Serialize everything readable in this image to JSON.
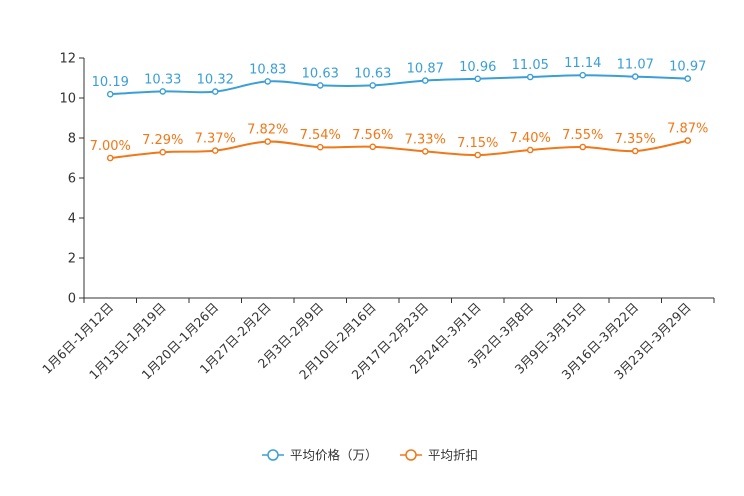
{
  "chart_data": {
    "type": "line",
    "categories": [
      "1月6日-1月12日",
      "1月13日-1月19日",
      "1月20日-1月26日",
      "1月27日-2月2日",
      "2月3日-2月9日",
      "2月10日-2月16日",
      "2月17日-2月23日",
      "2月24日-3月1日",
      "3月2日-3月8日",
      "3月9日-3月15日",
      "3月16日-3月22日",
      "3月23日-3月29日"
    ],
    "series": [
      {
        "name": "平均价格（万）",
        "color": "#3a9fd6",
        "values": [
          10.19,
          10.33,
          10.32,
          10.83,
          10.63,
          10.63,
          10.87,
          10.96,
          11.05,
          11.14,
          11.07,
          10.97
        ],
        "labels": [
          "10.19",
          "10.33",
          "10.32",
          "10.83",
          "10.63",
          "10.63",
          "10.87",
          "10.96",
          "11.05",
          "11.14",
          "11.07",
          "10.97"
        ]
      },
      {
        "name": "平均折扣",
        "color": "#f07818",
        "values": [
          7.0,
          7.29,
          7.37,
          7.82,
          7.54,
          7.56,
          7.33,
          7.15,
          7.4,
          7.55,
          7.35,
          7.87
        ],
        "labels": [
          "7.00%",
          "7.29%",
          "7.37%",
          "7.82%",
          "7.54%",
          "7.56%",
          "7.33%",
          "7.15%",
          "7.40%",
          "7.55%",
          "7.35%",
          "7.87%"
        ]
      }
    ],
    "y_ticks": [
      "0",
      "2",
      "4",
      "6",
      "8",
      "10",
      "12"
    ],
    "ylim": [
      0,
      12
    ],
    "title": "",
    "xlabel": "",
    "ylabel": "",
    "grid": false,
    "legend_position": "bottom-center"
  }
}
